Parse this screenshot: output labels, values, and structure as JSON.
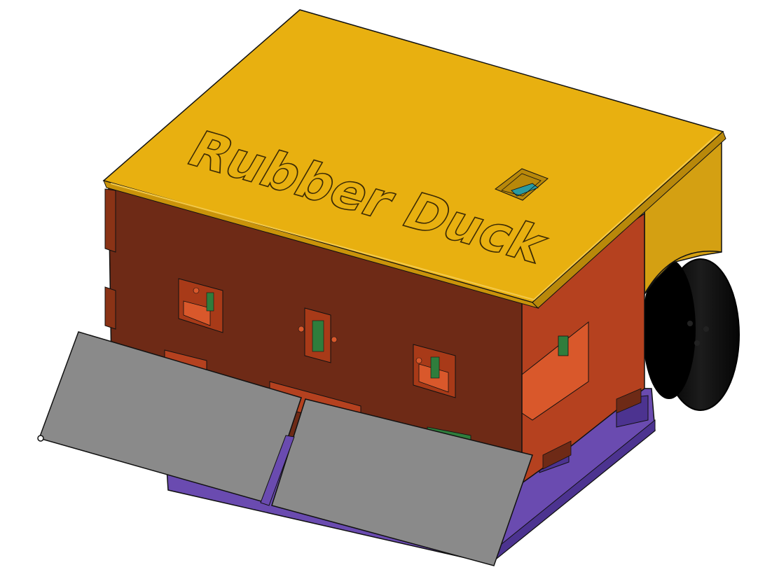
{
  "model": {
    "lid_text": "Rubber Duck",
    "colors": {
      "background": "#ffffff",
      "lid_top": "#e8b010",
      "lid_edge": "#c9930a",
      "body_front": "#6e2a16",
      "body_side": "#b5411f",
      "body_highlight": "#d9582b",
      "base": "#6a4bb0",
      "base_dark": "#4c3390",
      "wheel": "#0a0a0a",
      "plow": "#8a8a8a",
      "sensor_pcb": "#2f7d3c",
      "outline": "#111111"
    }
  }
}
